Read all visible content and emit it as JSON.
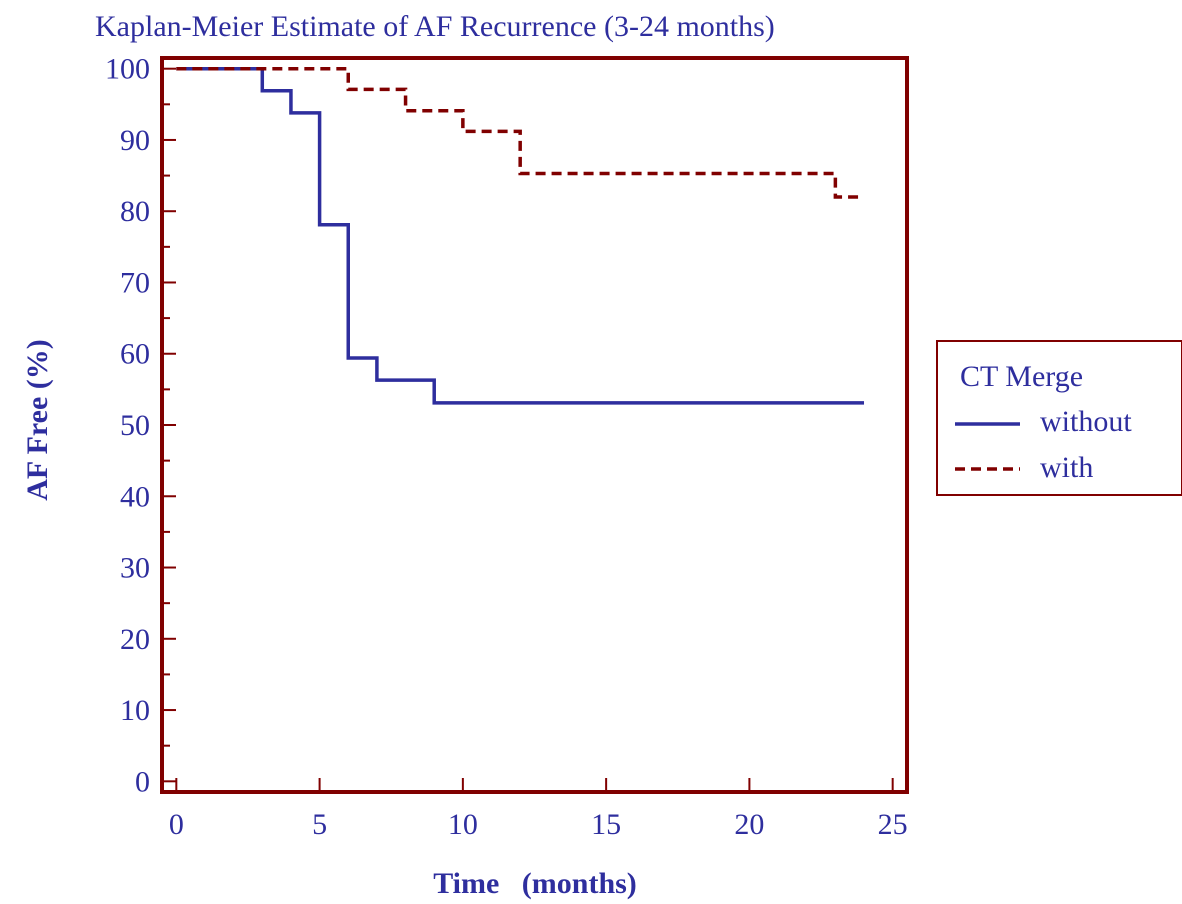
{
  "chart_data": {
    "type": "line",
    "title": "Kaplan-Meier Estimate of AF Recurrence (3-24 months)",
    "xlabel": "Time   (months)",
    "ylabel": "AF Free (%)",
    "xlim": [
      -0.5,
      25.5
    ],
    "ylim": [
      -1.5,
      101.5
    ],
    "xticks": [
      0,
      5,
      10,
      15,
      20,
      25
    ],
    "yticks": [
      0,
      10,
      20,
      30,
      40,
      50,
      60,
      70,
      80,
      90,
      100
    ],
    "step": true,
    "grid": false,
    "legend": {
      "title": "CT Merge",
      "position": "right"
    },
    "series": [
      {
        "name": "without",
        "color": "#2e2e9e",
        "dash": "solid",
        "x": [
          0,
          3,
          4,
          5,
          6,
          7,
          9,
          24
        ],
        "y": [
          100,
          96.9,
          93.8,
          78.1,
          59.4,
          56.3,
          53.1,
          53.1
        ]
      },
      {
        "name": "with",
        "color": "#800000",
        "dash": "dashed",
        "x": [
          0,
          6,
          8,
          10,
          12,
          23,
          24
        ],
        "y": [
          100,
          97.1,
          94.1,
          91.2,
          85.3,
          82.0,
          82.0
        ]
      }
    ]
  }
}
